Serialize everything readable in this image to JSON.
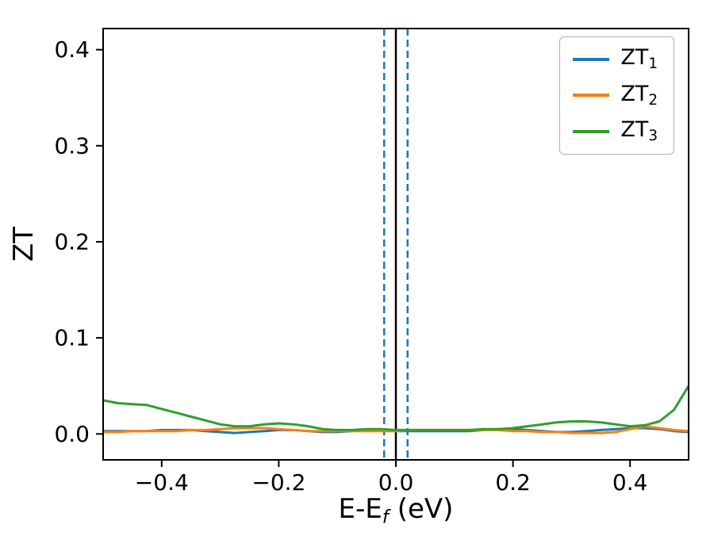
{
  "figure": {
    "background": "#ffffff",
    "spine_color": "#000000"
  },
  "chart_data": {
    "type": "line",
    "title": "",
    "ylabel": "ZT",
    "xlabel_parts": [
      "E-E",
      "f",
      " (eV)"
    ],
    "xlim": [
      -0.5,
      0.5
    ],
    "ylim": [
      -0.027,
      0.422
    ],
    "grid": false,
    "legend_position": "upper right",
    "xticks": {
      "values": [
        -0.4,
        -0.2,
        0.0,
        0.2,
        0.4
      ],
      "labels": [
        "−0.4",
        "−0.2",
        "0.0",
        "0.2",
        "0.4"
      ]
    },
    "yticks": {
      "values": [
        0.0,
        0.1,
        0.2,
        0.3,
        0.4
      ],
      "labels": [
        "0.0",
        "0.1",
        "0.2",
        "0.3",
        "0.4"
      ]
    },
    "x": [
      -0.5,
      -0.475,
      -0.45,
      -0.425,
      -0.4,
      -0.375,
      -0.35,
      -0.325,
      -0.3,
      -0.275,
      -0.25,
      -0.225,
      -0.2,
      -0.175,
      -0.15,
      -0.125,
      -0.1,
      -0.075,
      -0.05,
      -0.025,
      0,
      0.025,
      0.05,
      0.075,
      0.1,
      0.125,
      0.15,
      0.175,
      0.2,
      0.225,
      0.25,
      0.275,
      0.3,
      0.325,
      0.35,
      0.375,
      0.4,
      0.425,
      0.45,
      0.475,
      0.5
    ],
    "series": [
      {
        "name": "ZT1",
        "legend_base": "ZT",
        "legend_sub": "1",
        "color": "#1f77b4",
        "values": [
          0.003,
          0.003,
          0.003,
          0.003,
          0.004,
          0.004,
          0.004,
          0.003,
          0.002,
          0.001,
          0.002,
          0.003,
          0.004,
          0.004,
          0.003,
          0.002,
          0.002,
          0.003,
          0.004,
          0.004,
          0.003,
          0.003,
          0.003,
          0.003,
          0.003,
          0.003,
          0.004,
          0.005,
          0.005,
          0.004,
          0.003,
          0.002,
          0.002,
          0.003,
          0.004,
          0.005,
          0.006,
          0.006,
          0.005,
          0.003,
          0.002
        ]
      },
      {
        "name": "ZT2",
        "legend_base": "ZT",
        "legend_sub": "2",
        "color": "#ff7f0e",
        "values": [
          0.002,
          0.002,
          0.003,
          0.003,
          0.003,
          0.003,
          0.004,
          0.004,
          0.005,
          0.006,
          0.006,
          0.006,
          0.005,
          0.004,
          0.003,
          0.003,
          0.003,
          0.003,
          0.003,
          0.003,
          0.003,
          0.004,
          0.004,
          0.004,
          0.004,
          0.004,
          0.004,
          0.004,
          0.003,
          0.003,
          0.002,
          0.002,
          0.001,
          0.001,
          0.001,
          0.002,
          0.005,
          0.008,
          0.006,
          0.004,
          0.003
        ]
      },
      {
        "name": "ZT3",
        "legend_base": "ZT",
        "legend_sub": "3",
        "color": "#2ca02c",
        "values": [
          0.035,
          0.032,
          0.031,
          0.03,
          0.026,
          0.022,
          0.018,
          0.014,
          0.01,
          0.008,
          0.008,
          0.01,
          0.011,
          0.01,
          0.008,
          0.005,
          0.004,
          0.004,
          0.005,
          0.005,
          0.004,
          0.004,
          0.004,
          0.004,
          0.004,
          0.004,
          0.005,
          0.005,
          0.006,
          0.008,
          0.01,
          0.012,
          0.013,
          0.013,
          0.012,
          0.01,
          0.008,
          0.009,
          0.013,
          0.025,
          0.05
        ]
      }
    ],
    "vlines": [
      {
        "x": -0.02,
        "color": "#1f77b4",
        "style": "dashed",
        "width": 2.5
      },
      {
        "x": 0.0,
        "color": "#000000",
        "style": "solid",
        "width": 2.5
      },
      {
        "x": 0.02,
        "color": "#1f77b4",
        "style": "dashed",
        "width": 2.5
      }
    ]
  },
  "style": {
    "tick_font_size": 28,
    "tick_length": 9,
    "tick_width": 2,
    "line_width": 3
  }
}
